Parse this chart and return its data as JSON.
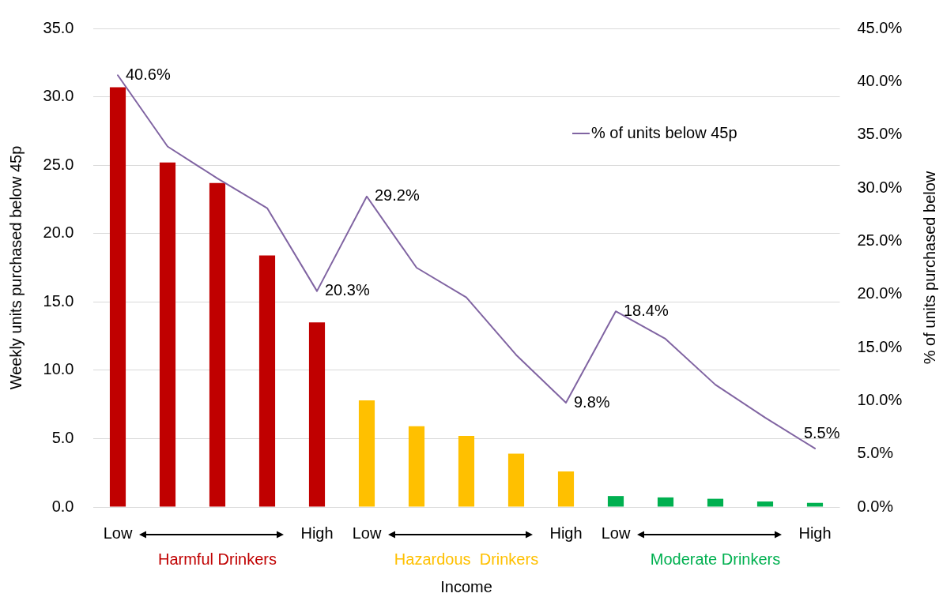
{
  "chart_data": {
    "type": "bar",
    "xlabel": "Income",
    "ylabel": "Weekly units purchased below 45p",
    "y2label": "% of units purchased below",
    "categories": [
      "Low",
      null,
      null,
      null,
      "High",
      "Low",
      null,
      null,
      null,
      "High",
      "Low",
      null,
      null,
      null,
      "High"
    ],
    "series": [
      {
        "colors": [
          "#c00000",
          "#c00000",
          "#c00000",
          "#c00000",
          "#c00000",
          "#ffc000",
          "#ffc000",
          "#ffc000",
          "#ffc000",
          "#ffc000",
          "#00b050",
          "#00b050",
          "#00b050",
          "#00b050",
          "#00b050"
        ],
        "values": [
          30.7,
          25.2,
          23.7,
          18.4,
          13.5,
          7.8,
          5.9,
          5.2,
          3.9,
          2.6,
          0.8,
          0.7,
          0.6,
          0.4,
          0.3
        ]
      },
      {
        "name": "% of units below 45p",
        "type": "line",
        "axis": "y2",
        "color": "#8064a2",
        "values": [
          40.6,
          33.9,
          30.9,
          28.1,
          20.3,
          29.2,
          22.5,
          19.7,
          14.3,
          9.8,
          18.4,
          15.8,
          11.5,
          8.4,
          5.5
        ],
        "value_labels": [
          "40.6%",
          null,
          null,
          null,
          "20.3%",
          "29.2%",
          null,
          null,
          null,
          "9.8%",
          "18.4%",
          null,
          null,
          null,
          "5.5%"
        ]
      }
    ],
    "annotations": [
      "Harmful Drinkers",
      "Hazardous  Drinkers",
      "Moderate Drinkers"
    ],
    "ylim": [
      0,
      35
    ],
    "yticks": [
      {
        "value": 0,
        "label": "0.0"
      },
      {
        "value": 5,
        "label": "5.0"
      },
      {
        "value": 10,
        "label": "10.0"
      },
      {
        "value": 15,
        "label": "15.0"
      },
      {
        "value": 20,
        "label": "20.0"
      },
      {
        "value": 25,
        "label": "25.0"
      },
      {
        "value": 30,
        "label": "30.0"
      },
      {
        "value": 35,
        "label": "35.0"
      }
    ],
    "y2lim": [
      0,
      45
    ],
    "y2ticks": [
      {
        "value": 0,
        "label": "0.0%"
      },
      {
        "value": 5,
        "label": "5.0%"
      },
      {
        "value": 10,
        "label": "10.0%"
      },
      {
        "value": 15,
        "label": "15.0%"
      },
      {
        "value": 20,
        "label": "20.0%"
      },
      {
        "value": 25,
        "label": "25.0%"
      },
      {
        "value": 30,
        "label": "30.0%"
      },
      {
        "value": 35,
        "label": "35.0%"
      },
      {
        "value": 40,
        "label": "40.0%"
      },
      {
        "value": 45,
        "label": "45.0%"
      }
    ],
    "grid": "y",
    "legend": "top right",
    "marker": "none"
  }
}
